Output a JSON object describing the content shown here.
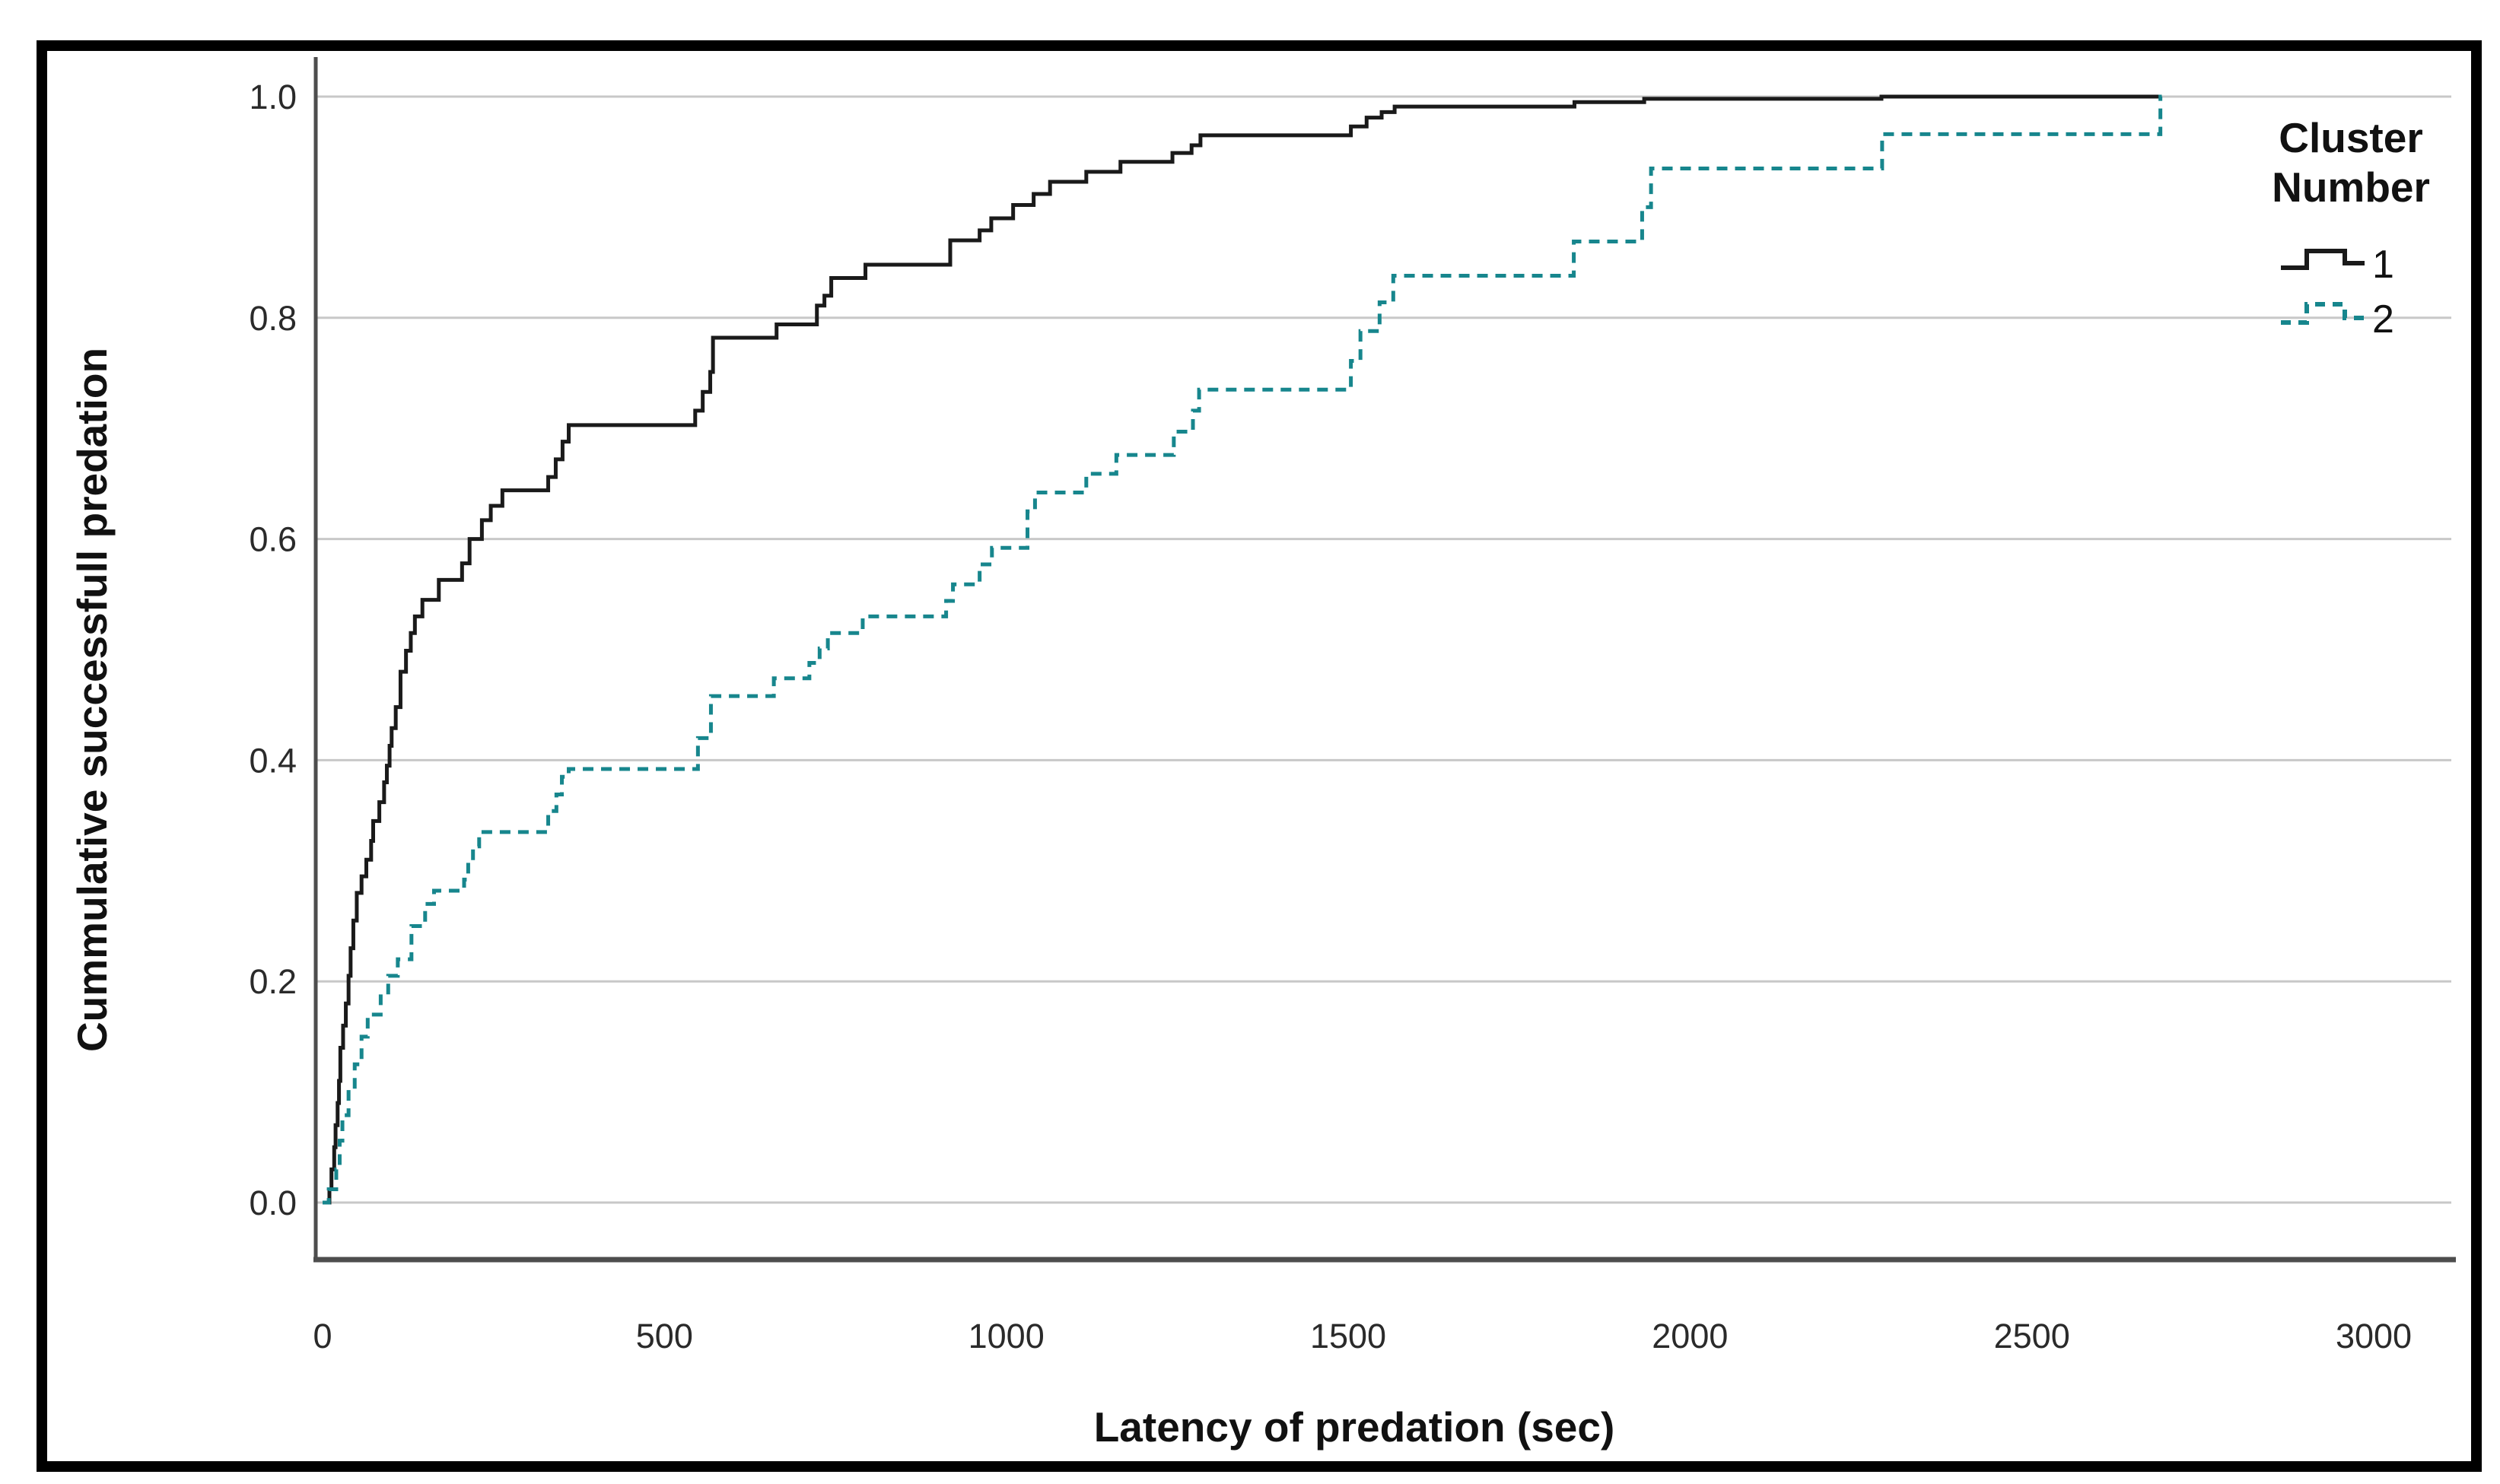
{
  "axes": {
    "x": {
      "label": "Latency of predation (sec)",
      "range": [
        0,
        3000
      ],
      "ticks": [
        {
          "label": "0",
          "value": 0
        },
        {
          "label": "500",
          "value": 500
        },
        {
          "label": "1000",
          "value": 1000
        },
        {
          "label": "1500",
          "value": 1500
        },
        {
          "label": "2000",
          "value": 2000
        },
        {
          "label": "2500",
          "value": 2500
        },
        {
          "label": "3000",
          "value": 3000
        }
      ]
    },
    "y": {
      "label": "Cummulative successfull predation",
      "range": [
        0.0,
        1.0
      ],
      "ticks": [
        {
          "label": "0.0",
          "value": 0.0
        },
        {
          "label": "0.2",
          "value": 0.2
        },
        {
          "label": "0.4",
          "value": 0.4
        },
        {
          "label": "0.6",
          "value": 0.6
        },
        {
          "label": "0.8",
          "value": 0.8
        },
        {
          "label": "1.0",
          "value": 1.0
        }
      ]
    }
  },
  "legend": {
    "title": "Cluster Number",
    "title_lines": [
      "Cluster",
      "Number"
    ],
    "entries": [
      {
        "label": "1",
        "style": "solid",
        "color": "#1a1a1a"
      },
      {
        "label": "2",
        "style": "dashed",
        "color": "#17868d"
      }
    ]
  },
  "colors": {
    "cluster1": "#1a1a1a",
    "cluster2": "#17868d",
    "gridline": "#c8c8c8",
    "axis": "#4d4d4d",
    "frame": "#000000"
  },
  "chart_data": {
    "type": "line",
    "subtype": "cumulative-step",
    "title": "",
    "xlabel": "Latency of predation (sec)",
    "ylabel": "Cummulative successfull predation",
    "xlim": [
      -150,
      3200
    ],
    "ylim": [
      0.0,
      1.0
    ],
    "grid": "horizontal",
    "legend_position": "top-right",
    "series": [
      {
        "name": "1",
        "color": "#1a1a1a",
        "dash": "solid",
        "end_x": 2690,
        "points": [
          [
            0,
            0
          ],
          [
            10,
            0.012
          ],
          [
            13,
            0.03
          ],
          [
            17,
            0.05
          ],
          [
            19,
            0.07
          ],
          [
            22,
            0.09
          ],
          [
            24,
            0.11
          ],
          [
            26,
            0.14
          ],
          [
            30,
            0.16
          ],
          [
            34,
            0.18
          ],
          [
            38,
            0.205
          ],
          [
            41,
            0.23
          ],
          [
            45,
            0.255
          ],
          [
            50,
            0.28
          ],
          [
            57,
            0.295
          ],
          [
            64,
            0.31
          ],
          [
            71,
            0.327
          ],
          [
            74,
            0.345
          ],
          [
            83,
            0.362
          ],
          [
            90,
            0.38
          ],
          [
            94,
            0.395
          ],
          [
            98,
            0.413
          ],
          [
            101,
            0.429
          ],
          [
            107,
            0.448
          ],
          [
            114,
            0.48
          ],
          [
            122,
            0.499
          ],
          [
            129,
            0.515
          ],
          [
            135,
            0.53
          ],
          [
            146,
            0.545
          ],
          [
            170,
            0.563
          ],
          [
            204,
            0.578
          ],
          [
            215,
            0.6
          ],
          [
            233,
            0.617
          ],
          [
            246,
            0.63
          ],
          [
            263,
            0.644
          ],
          [
            330,
            0.656
          ],
          [
            341,
            0.672
          ],
          [
            351,
            0.688
          ],
          [
            360,
            0.703
          ],
          [
            545,
            0.716
          ],
          [
            556,
            0.733
          ],
          [
            567,
            0.751
          ],
          [
            571,
            0.782
          ],
          [
            664,
            0.794
          ],
          [
            723,
            0.811
          ],
          [
            734,
            0.82
          ],
          [
            744,
            0.836
          ],
          [
            794,
            0.848
          ],
          [
            918,
            0.87
          ],
          [
            961,
            0.879
          ],
          [
            978,
            0.89
          ],
          [
            1010,
            0.902
          ],
          [
            1040,
            0.912
          ],
          [
            1064,
            0.923
          ],
          [
            1117,
            0.932
          ],
          [
            1167,
            0.941
          ],
          [
            1243,
            0.949
          ],
          [
            1271,
            0.956
          ],
          [
            1284,
            0.965
          ],
          [
            1504,
            0.973
          ],
          [
            1527,
            0.981
          ],
          [
            1549,
            0.986
          ],
          [
            1568,
            0.991
          ],
          [
            1831,
            0.995
          ],
          [
            1933,
            0.998
          ],
          [
            2280,
            1.0
          ]
        ]
      },
      {
        "name": "2",
        "color": "#17868d",
        "dash": "dashed",
        "end_x": 2690,
        "points": [
          [
            0,
            0
          ],
          [
            9,
            0.012
          ],
          [
            20,
            0.03
          ],
          [
            25,
            0.056
          ],
          [
            29,
            0.079
          ],
          [
            38,
            0.102
          ],
          [
            47,
            0.125
          ],
          [
            57,
            0.15
          ],
          [
            66,
            0.17
          ],
          [
            85,
            0.19
          ],
          [
            96,
            0.205
          ],
          [
            110,
            0.22
          ],
          [
            130,
            0.25
          ],
          [
            150,
            0.27
          ],
          [
            163,
            0.282
          ],
          [
            207,
            0.292
          ],
          [
            213,
            0.308
          ],
          [
            220,
            0.322
          ],
          [
            229,
            0.335
          ],
          [
            330,
            0.354
          ],
          [
            342,
            0.369
          ],
          [
            350,
            0.385
          ],
          [
            360,
            0.392
          ],
          [
            549,
            0.42
          ],
          [
            568,
            0.458
          ],
          [
            660,
            0.474
          ],
          [
            712,
            0.488
          ],
          [
            727,
            0.501
          ],
          [
            739,
            0.515
          ],
          [
            790,
            0.53
          ],
          [
            912,
            0.544
          ],
          [
            922,
            0.559
          ],
          [
            961,
            0.577
          ],
          [
            979,
            0.592
          ],
          [
            1031,
            0.625
          ],
          [
            1042,
            0.642
          ],
          [
            1117,
            0.659
          ],
          [
            1161,
            0.676
          ],
          [
            1245,
            0.697
          ],
          [
            1273,
            0.716
          ],
          [
            1282,
            0.735
          ],
          [
            1504,
            0.761
          ],
          [
            1518,
            0.788
          ],
          [
            1546,
            0.814
          ],
          [
            1566,
            0.838
          ],
          [
            1830,
            0.869
          ],
          [
            1930,
            0.9
          ],
          [
            1943,
            0.935
          ],
          [
            2281,
            0.966
          ],
          [
            2688,
            1.0
          ]
        ]
      }
    ]
  }
}
